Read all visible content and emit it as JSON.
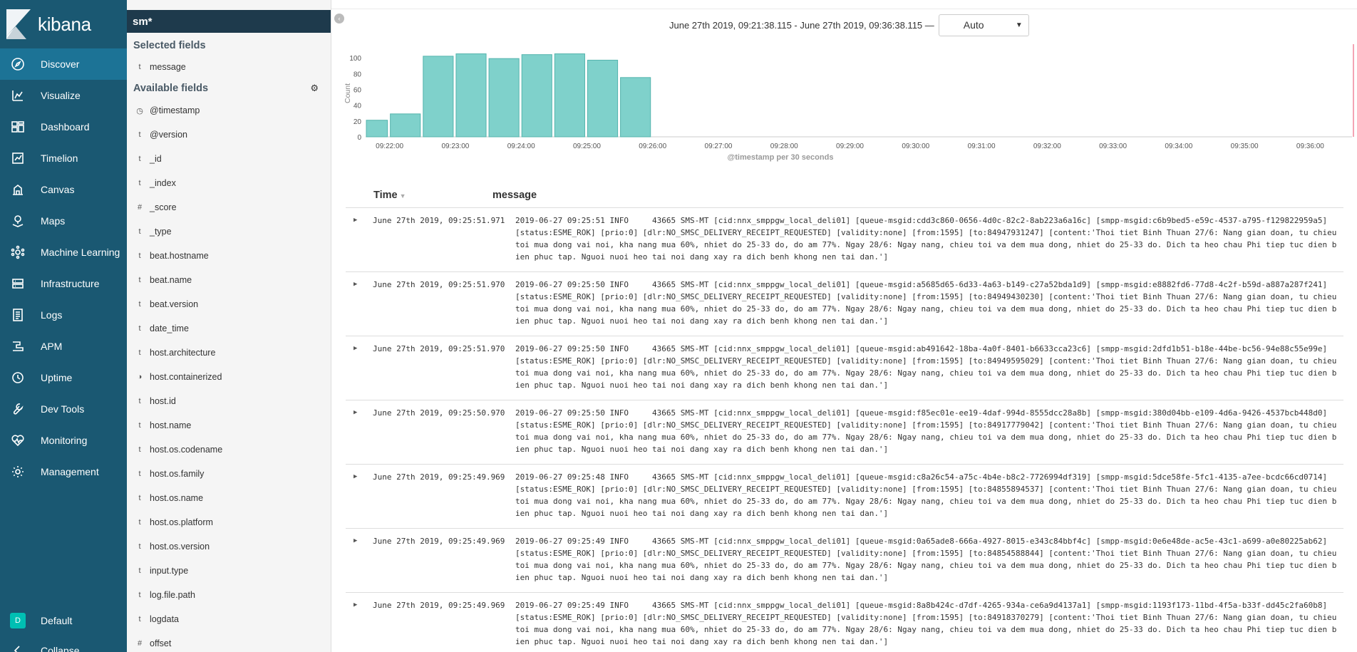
{
  "app": {
    "brand": "kibana"
  },
  "nav": {
    "items": [
      {
        "label": "Discover",
        "icon": "compass-icon",
        "active": true
      },
      {
        "label": "Visualize",
        "icon": "visualize-icon"
      },
      {
        "label": "Dashboard",
        "icon": "dashboard-icon"
      },
      {
        "label": "Timelion",
        "icon": "timelion-icon"
      },
      {
        "label": "Canvas",
        "icon": "canvas-icon"
      },
      {
        "label": "Maps",
        "icon": "maps-icon"
      },
      {
        "label": "Machine Learning",
        "icon": "machine-learning-icon"
      },
      {
        "label": "Infrastructure",
        "icon": "infrastructure-icon"
      },
      {
        "label": "Logs",
        "icon": "logs-icon"
      },
      {
        "label": "APM",
        "icon": "apm-icon"
      },
      {
        "label": "Uptime",
        "icon": "uptime-icon"
      },
      {
        "label": "Dev Tools",
        "icon": "wrench-icon"
      },
      {
        "label": "Monitoring",
        "icon": "heartbeat-icon"
      },
      {
        "label": "Management",
        "icon": "gear-icon"
      }
    ],
    "space": {
      "avatar": "D",
      "label": "Default"
    },
    "collapse_label": "Collapse"
  },
  "sidebar": {
    "index_pattern": "sm*",
    "selected_title": "Selected fields",
    "selected_fields": [
      {
        "type": "t",
        "name": "message"
      }
    ],
    "available_title": "Available fields",
    "available_fields": [
      {
        "type": "clock",
        "name": "@timestamp"
      },
      {
        "type": "t",
        "name": "@version"
      },
      {
        "type": "t",
        "name": "_id"
      },
      {
        "type": "t",
        "name": "_index"
      },
      {
        "type": "#",
        "name": "_score"
      },
      {
        "type": "t",
        "name": "_type"
      },
      {
        "type": "t",
        "name": "beat.hostname"
      },
      {
        "type": "t",
        "name": "beat.name"
      },
      {
        "type": "t",
        "name": "beat.version"
      },
      {
        "type": "t",
        "name": "date_time"
      },
      {
        "type": "t",
        "name": "host.architecture"
      },
      {
        "type": "half",
        "name": "host.containerized"
      },
      {
        "type": "t",
        "name": "host.id"
      },
      {
        "type": "t",
        "name": "host.name"
      },
      {
        "type": "t",
        "name": "host.os.codename"
      },
      {
        "type": "t",
        "name": "host.os.family"
      },
      {
        "type": "t",
        "name": "host.os.name"
      },
      {
        "type": "t",
        "name": "host.os.platform"
      },
      {
        "type": "t",
        "name": "host.os.version"
      },
      {
        "type": "t",
        "name": "input.type"
      },
      {
        "type": "t",
        "name": "log.file.path"
      },
      {
        "type": "t",
        "name": "logdata"
      },
      {
        "type": "#",
        "name": "offset"
      }
    ]
  },
  "query_bar": {
    "time_range": "June 27th 2019, 09:21:38.115 - June 27th 2019, 09:36:38.115 —",
    "interval": "Auto"
  },
  "chart_data": {
    "type": "bar",
    "categories": [
      "09:21:30",
      "09:22:00",
      "09:22:30",
      "09:23:00",
      "09:23:30",
      "09:24:00",
      "09:24:30",
      "09:25:00",
      "09:25:30"
    ],
    "values": [
      21,
      29,
      102,
      105,
      99,
      104,
      105,
      97,
      75
    ],
    "x_ticks": [
      "09:22:00",
      "09:23:00",
      "09:24:00",
      "09:25:00",
      "09:26:00",
      "09:27:00",
      "09:28:00",
      "09:29:00",
      "09:30:00",
      "09:31:00",
      "09:32:00",
      "09:33:00",
      "09:34:00",
      "09:35:00",
      "09:36:00"
    ],
    "y_ticks": [
      0,
      20,
      40,
      60,
      80,
      100
    ],
    "ylabel": "Count",
    "xlabel": "@timestamp per 30 seconds",
    "ylim": [
      0,
      110
    ],
    "xlim": [
      "09:21:38.115",
      "09:36:38.115"
    ],
    "colors": {
      "bar": "#7fd1cb",
      "bar_border": "#54b4ad",
      "partial_bucket": "#e6e6e6",
      "now_line": "#e8486a"
    }
  },
  "doc_table": {
    "columns": {
      "time": "Time",
      "message": "message"
    },
    "rows": [
      {
        "time": "June 27th 2019, 09:25:51.971",
        "message": "2019-06-27 09:25:51 INFO     43665 SMS-MT [cid:nnx_smppgw_local_deli01] [queue-msgid:cdd3c860-0656-4d0c-82c2-8ab223a6a16c] [smpp-msgid:c6b9bed5-e59c-4537-a795-f129822959a5] [status:ESME_ROK] [prio:0] [dlr:NO_SMSC_DELIVERY_RECEIPT_REQUESTED] [validity:none] [from:1595] [to:84947931247] [content:'Thoi tiet Binh Thuan 27/6: Nang gian doan, tu chieu toi mua dong vai noi, kha nang mua 60%, nhiet do 25-33 do, do am 77%. Ngay 28/6: Ngay nang, chieu toi va dem mua dong, nhiet do 25-33 do. Dich ta heo chau Phi tiep tuc dien bien phuc tap. Nguoi nuoi heo tai noi dang xay ra dich benh khong nen tai dan.']"
      },
      {
        "time": "June 27th 2019, 09:25:51.970",
        "message": "2019-06-27 09:25:50 INFO     43665 SMS-MT [cid:nnx_smppgw_local_deli01] [queue-msgid:a5685d65-6d33-4a63-b149-c27a52bda1d9] [smpp-msgid:e8882fd6-77d8-4c2f-b59d-a887a287f241] [status:ESME_ROK] [prio:0] [dlr:NO_SMSC_DELIVERY_RECEIPT_REQUESTED] [validity:none] [from:1595] [to:84949430230] [content:'Thoi tiet Binh Thuan 27/6: Nang gian doan, tu chieu toi mua dong vai noi, kha nang mua 60%, nhiet do 25-33 do, do am 77%. Ngay 28/6: Ngay nang, chieu toi va dem mua dong, nhiet do 25-33 do. Dich ta heo chau Phi tiep tuc dien bien phuc tap. Nguoi nuoi heo tai noi dang xay ra dich benh khong nen tai dan.']"
      },
      {
        "time": "June 27th 2019, 09:25:51.970",
        "message": "2019-06-27 09:25:50 INFO     43665 SMS-MT [cid:nnx_smppgw_local_deli01] [queue-msgid:ab491642-18ba-4a0f-8401-b6633cca23c6] [smpp-msgid:2dfd1b51-b18e-44be-bc56-94e88c55e99e] [status:ESME_ROK] [prio:0] [dlr:NO_SMSC_DELIVERY_RECEIPT_REQUESTED] [validity:none] [from:1595] [to:84949595029] [content:'Thoi tiet Binh Thuan 27/6: Nang gian doan, tu chieu toi mua dong vai noi, kha nang mua 60%, nhiet do 25-33 do, do am 77%. Ngay 28/6: Ngay nang, chieu toi va dem mua dong, nhiet do 25-33 do. Dich ta heo chau Phi tiep tuc dien bien phuc tap. Nguoi nuoi heo tai noi dang xay ra dich benh khong nen tai dan.']"
      },
      {
        "time": "June 27th 2019, 09:25:50.970",
        "message": "2019-06-27 09:25:50 INFO     43665 SMS-MT [cid:nnx_smppgw_local_deli01] [queue-msgid:f85ec01e-ee19-4daf-994d-8555dcc28a8b] [smpp-msgid:380d04bb-e109-4d6a-9426-4537bcb448d0] [status:ESME_ROK] [prio:0] [dlr:NO_SMSC_DELIVERY_RECEIPT_REQUESTED] [validity:none] [from:1595] [to:84917779042] [content:'Thoi tiet Binh Thuan 27/6: Nang gian doan, tu chieu toi mua dong vai noi, kha nang mua 60%, nhiet do 25-33 do, do am 77%. Ngay 28/6: Ngay nang, chieu toi va dem mua dong, nhiet do 25-33 do. Dich ta heo chau Phi tiep tuc dien bien phuc tap. Nguoi nuoi heo tai noi dang xay ra dich benh khong nen tai dan.']"
      },
      {
        "time": "June 27th 2019, 09:25:49.969",
        "message": "2019-06-27 09:25:48 INFO     43665 SMS-MT [cid:nnx_smppgw_local_deli01] [queue-msgid:c8a26c54-a75c-4b4e-b8c2-7726994df319] [smpp-msgid:5dce58fe-5fc1-4135-a7ee-bcdc66cd0714] [status:ESME_ROK] [prio:0] [dlr:NO_SMSC_DELIVERY_RECEIPT_REQUESTED] [validity:none] [from:1595] [to:84855894537] [content:'Thoi tiet Binh Thuan 27/6: Nang gian doan, tu chieu toi mua dong vai noi, kha nang mua 60%, nhiet do 25-33 do, do am 77%. Ngay 28/6: Ngay nang, chieu toi va dem mua dong, nhiet do 25-33 do. Dich ta heo chau Phi tiep tuc dien bien phuc tap. Nguoi nuoi heo tai noi dang xay ra dich benh khong nen tai dan.']"
      },
      {
        "time": "June 27th 2019, 09:25:49.969",
        "message": "2019-06-27 09:25:49 INFO     43665 SMS-MT [cid:nnx_smppgw_local_deli01] [queue-msgid:0a65ade8-666a-4927-8015-e343c84bbf4c] [smpp-msgid:0e6e48de-ac5e-43c1-a699-a0e80225ab62] [status:ESME_ROK] [prio:0] [dlr:NO_SMSC_DELIVERY_RECEIPT_REQUESTED] [validity:none] [from:1595] [to:84854588844] [content:'Thoi tiet Binh Thuan 27/6: Nang gian doan, tu chieu toi mua dong vai noi, kha nang mua 60%, nhiet do 25-33 do, do am 77%. Ngay 28/6: Ngay nang, chieu toi va dem mua dong, nhiet do 25-33 do. Dich ta heo chau Phi tiep tuc dien bien phuc tap. Nguoi nuoi heo tai noi dang xay ra dich benh khong nen tai dan.']"
      },
      {
        "time": "June 27th 2019, 09:25:49.969",
        "message": "2019-06-27 09:25:49 INFO     43665 SMS-MT [cid:nnx_smppgw_local_deli01] [queue-msgid:8a8b424c-d7df-4265-934a-ce6a9d4137a1] [smpp-msgid:1193f173-11bd-4f5a-b33f-dd45c2fa60b8] [status:ESME_ROK] [prio:0] [dlr:NO_SMSC_DELIVERY_RECEIPT_REQUESTED] [validity:none] [from:1595] [to:84918370279] [content:'Thoi tiet Binh Thuan 27/6: Nang gian doan, tu chieu toi mua dong vai noi, kha nang mua 60%, nhiet do 25-33 do, do am 77%. Ngay 28/6: Ngay nang, chieu toi va dem mua dong, nhiet do 25-33 do. Dich ta heo chau Phi tiep tuc dien bien phuc tap. Nguoi nuoi heo tai noi dang xay ra dich benh khong nen tai dan.']"
      }
    ]
  }
}
